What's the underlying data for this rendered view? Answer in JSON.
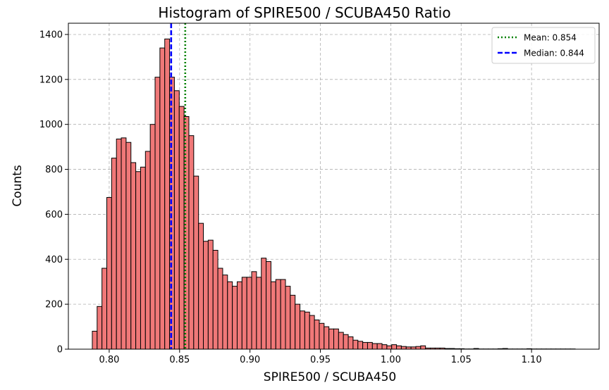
{
  "chart_data": {
    "type": "bar",
    "title": "Histogram of SPIRE500 / SCUBA450 Ratio",
    "xlabel": "SPIRE500 / SCUBA450",
    "ylabel": "Counts",
    "xlim": [
      0.771,
      1.148
    ],
    "ylim": [
      0,
      1450
    ],
    "xticks": [
      "0.80",
      "0.85",
      "0.90",
      "0.95",
      "1.00",
      "1.05",
      "1.10"
    ],
    "yticks": [
      "0",
      "200",
      "400",
      "600",
      "800",
      "1000",
      "1200",
      "1400"
    ],
    "grid": true,
    "bin_start": 0.788,
    "bin_width": 0.00343,
    "counts": [
      80,
      190,
      360,
      675,
      850,
      935,
      940,
      920,
      830,
      790,
      810,
      880,
      1000,
      1210,
      1340,
      1380,
      1210,
      1150,
      1080,
      1035,
      950,
      770,
      560,
      480,
      485,
      440,
      360,
      330,
      300,
      280,
      300,
      320,
      320,
      345,
      320,
      405,
      390,
      300,
      310,
      310,
      280,
      240,
      200,
      170,
      165,
      150,
      130,
      115,
      100,
      90,
      90,
      75,
      65,
      55,
      40,
      35,
      30,
      30,
      25,
      25,
      20,
      15,
      20,
      15,
      12,
      10,
      10,
      12,
      15,
      5,
      5,
      5,
      5,
      3,
      3,
      2,
      2,
      1,
      1,
      3,
      1,
      1,
      1,
      1,
      2,
      3,
      1,
      1,
      1,
      1,
      2,
      1,
      1,
      1,
      1,
      1,
      1,
      1,
      1,
      1
    ],
    "reference_lines": [
      {
        "name": "Mean: 0.854",
        "value": 0.854,
        "style": "dotted",
        "color": "#008000"
      },
      {
        "name": "Median: 0.844",
        "value": 0.844,
        "style": "dashed",
        "color": "#0000ff"
      }
    ],
    "bar_color": "#f07878",
    "edge_color": "#000000",
    "legend_position": "top-right"
  }
}
